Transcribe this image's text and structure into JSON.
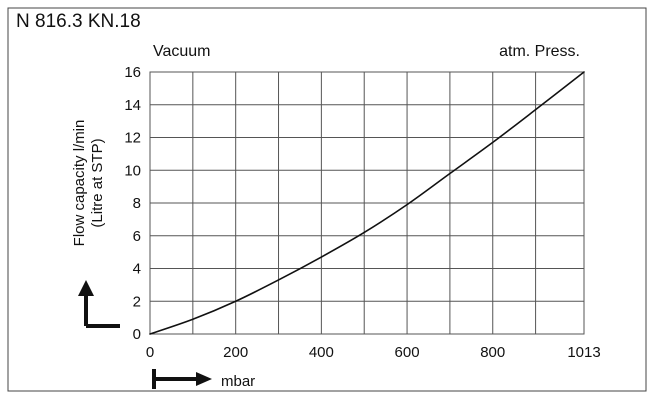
{
  "chart_data": {
    "type": "line",
    "title": "N 816.3 KN.18",
    "left_header": "Vacuum",
    "right_header": "atm. Press.",
    "xlabel": "mbar",
    "ylabel_lines": [
      "Flow capacity l/min",
      "(Litre at STP)"
    ],
    "xlim": [
      0,
      1013
    ],
    "ylim": [
      0,
      16
    ],
    "xticks": [
      {
        "value": 0,
        "label": "0"
      },
      {
        "value": 200,
        "label": "200"
      },
      {
        "value": 400,
        "label": "400"
      },
      {
        "value": 600,
        "label": "600"
      },
      {
        "value": 800,
        "label": "800"
      },
      {
        "value": 1013,
        "label": "1013"
      }
    ],
    "yticks": [
      {
        "value": 0,
        "label": "0"
      },
      {
        "value": 2,
        "label": "2"
      },
      {
        "value": 4,
        "label": "4"
      },
      {
        "value": 6,
        "label": "6"
      },
      {
        "value": 8,
        "label": "8"
      },
      {
        "value": 10,
        "label": "10"
      },
      {
        "value": 12,
        "label": "12"
      },
      {
        "value": 14,
        "label": "14"
      },
      {
        "value": 16,
        "label": "16"
      }
    ],
    "xgrid": [
      0,
      100,
      200,
      300,
      400,
      500,
      600,
      700,
      800,
      900,
      1013
    ],
    "ygrid": [
      0,
      2,
      4,
      6,
      8,
      10,
      12,
      14,
      16
    ],
    "grid": true,
    "series": [
      {
        "x": [
          0,
          100,
          200,
          300,
          400,
          500,
          600,
          700,
          800,
          900,
          1013
        ],
        "y": [
          0,
          0.9,
          2.0,
          3.3,
          4.7,
          6.2,
          7.9,
          9.8,
          11.7,
          13.7,
          16.0
        ]
      }
    ]
  }
}
